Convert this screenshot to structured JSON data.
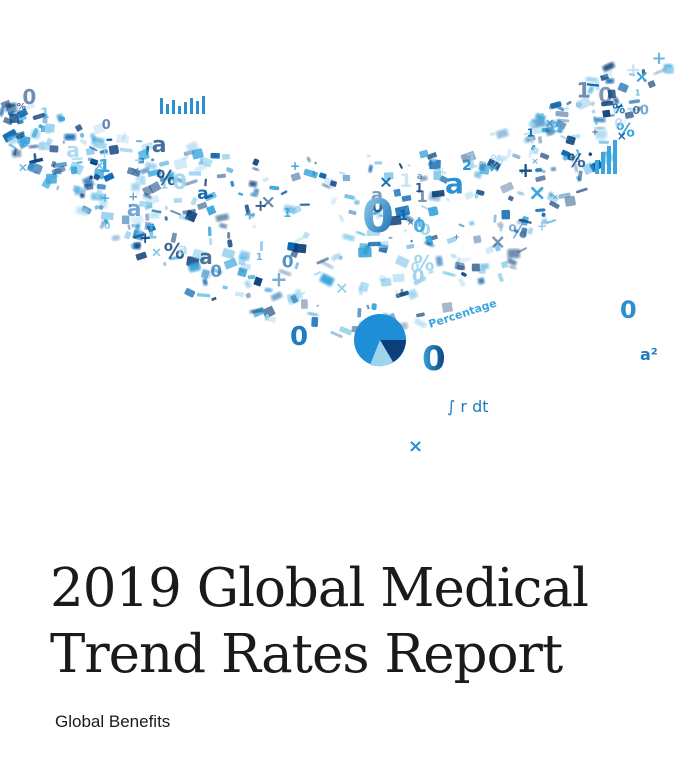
{
  "cover": {
    "title_line1": "2019 Global Medical",
    "title_line2": "Trend Rates Report",
    "subtitle": "Global Benefits"
  },
  "artwork": {
    "description_icon": "data-wave-illustration-icon",
    "colors": {
      "light": "#9fd4ef",
      "mid": "#3aa6dd",
      "dark": "#0b67b0",
      "deep": "#0a3f7a"
    },
    "glyphs": [
      "0",
      "a²",
      "×",
      "+",
      "%",
      "∫",
      "Percentage"
    ]
  }
}
